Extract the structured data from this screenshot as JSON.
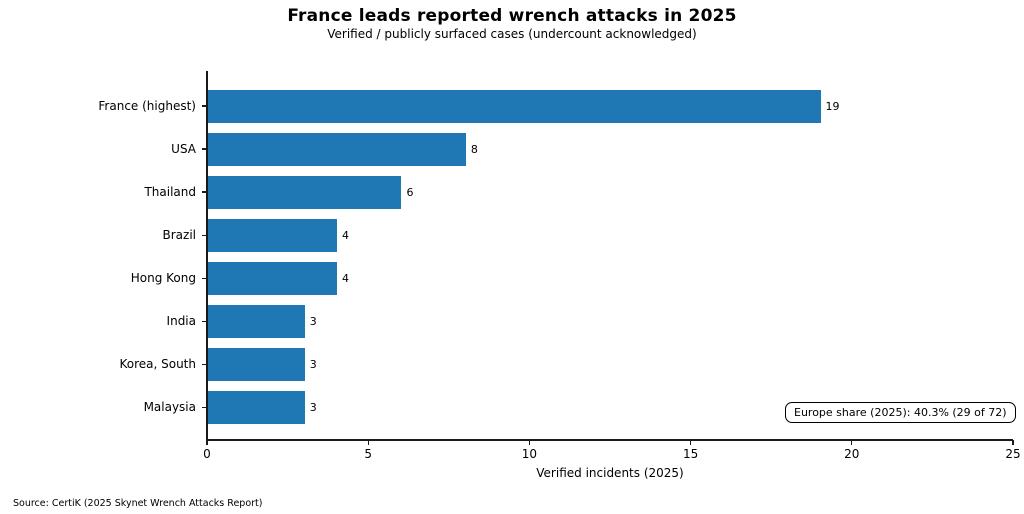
{
  "header": {
    "title": "France leads reported wrench attacks in 2025",
    "subtitle": "Verified / publicly surfaced cases (undercount acknowledged)"
  },
  "chart_data": {
    "type": "bar",
    "orientation": "horizontal",
    "title": "France leads reported wrench attacks in 2025",
    "subtitle": "Verified / publicly surfaced cases (undercount acknowledged)",
    "categories": [
      "France (highest)",
      "USA",
      "Thailand",
      "Brazil",
      "Hong Kong",
      "India",
      "Korea, South",
      "Malaysia"
    ],
    "values": [
      19,
      8,
      6,
      4,
      4,
      3,
      3,
      3
    ],
    "value_labels": [
      "19",
      "8",
      "6",
      "4",
      "4",
      "3",
      "3",
      "3"
    ],
    "xlabel": "Verified incidents (2025)",
    "ylabel": "",
    "xlim": [
      0,
      25
    ],
    "xticks": [
      0,
      5,
      10,
      15,
      20,
      25
    ],
    "xtick_labels": [
      "0",
      "5",
      "10",
      "15",
      "20",
      "25"
    ],
    "bar_color": "#1f77b4",
    "grid": false,
    "legend": null,
    "annotation": "Europe share (2025): 40.3% (29 of 72)"
  },
  "annotation": {
    "text": "Europe share (2025): 40.3% (29 of 72)"
  },
  "footer": {
    "source": "Source: CertiK (2025 Skynet Wrench Attacks Report)"
  }
}
